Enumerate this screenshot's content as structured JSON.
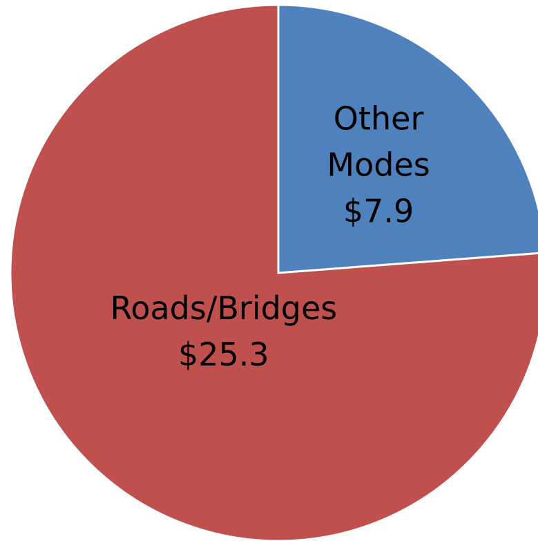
{
  "chart_data": {
    "type": "pie",
    "categories": [
      "Other Modes",
      "Roads/Bridges"
    ],
    "values": [
      7.9,
      25.3
    ],
    "value_labels": [
      "$7.9",
      "$25.3"
    ],
    "colors": [
      "#4f81bd",
      "#c0504d"
    ]
  }
}
